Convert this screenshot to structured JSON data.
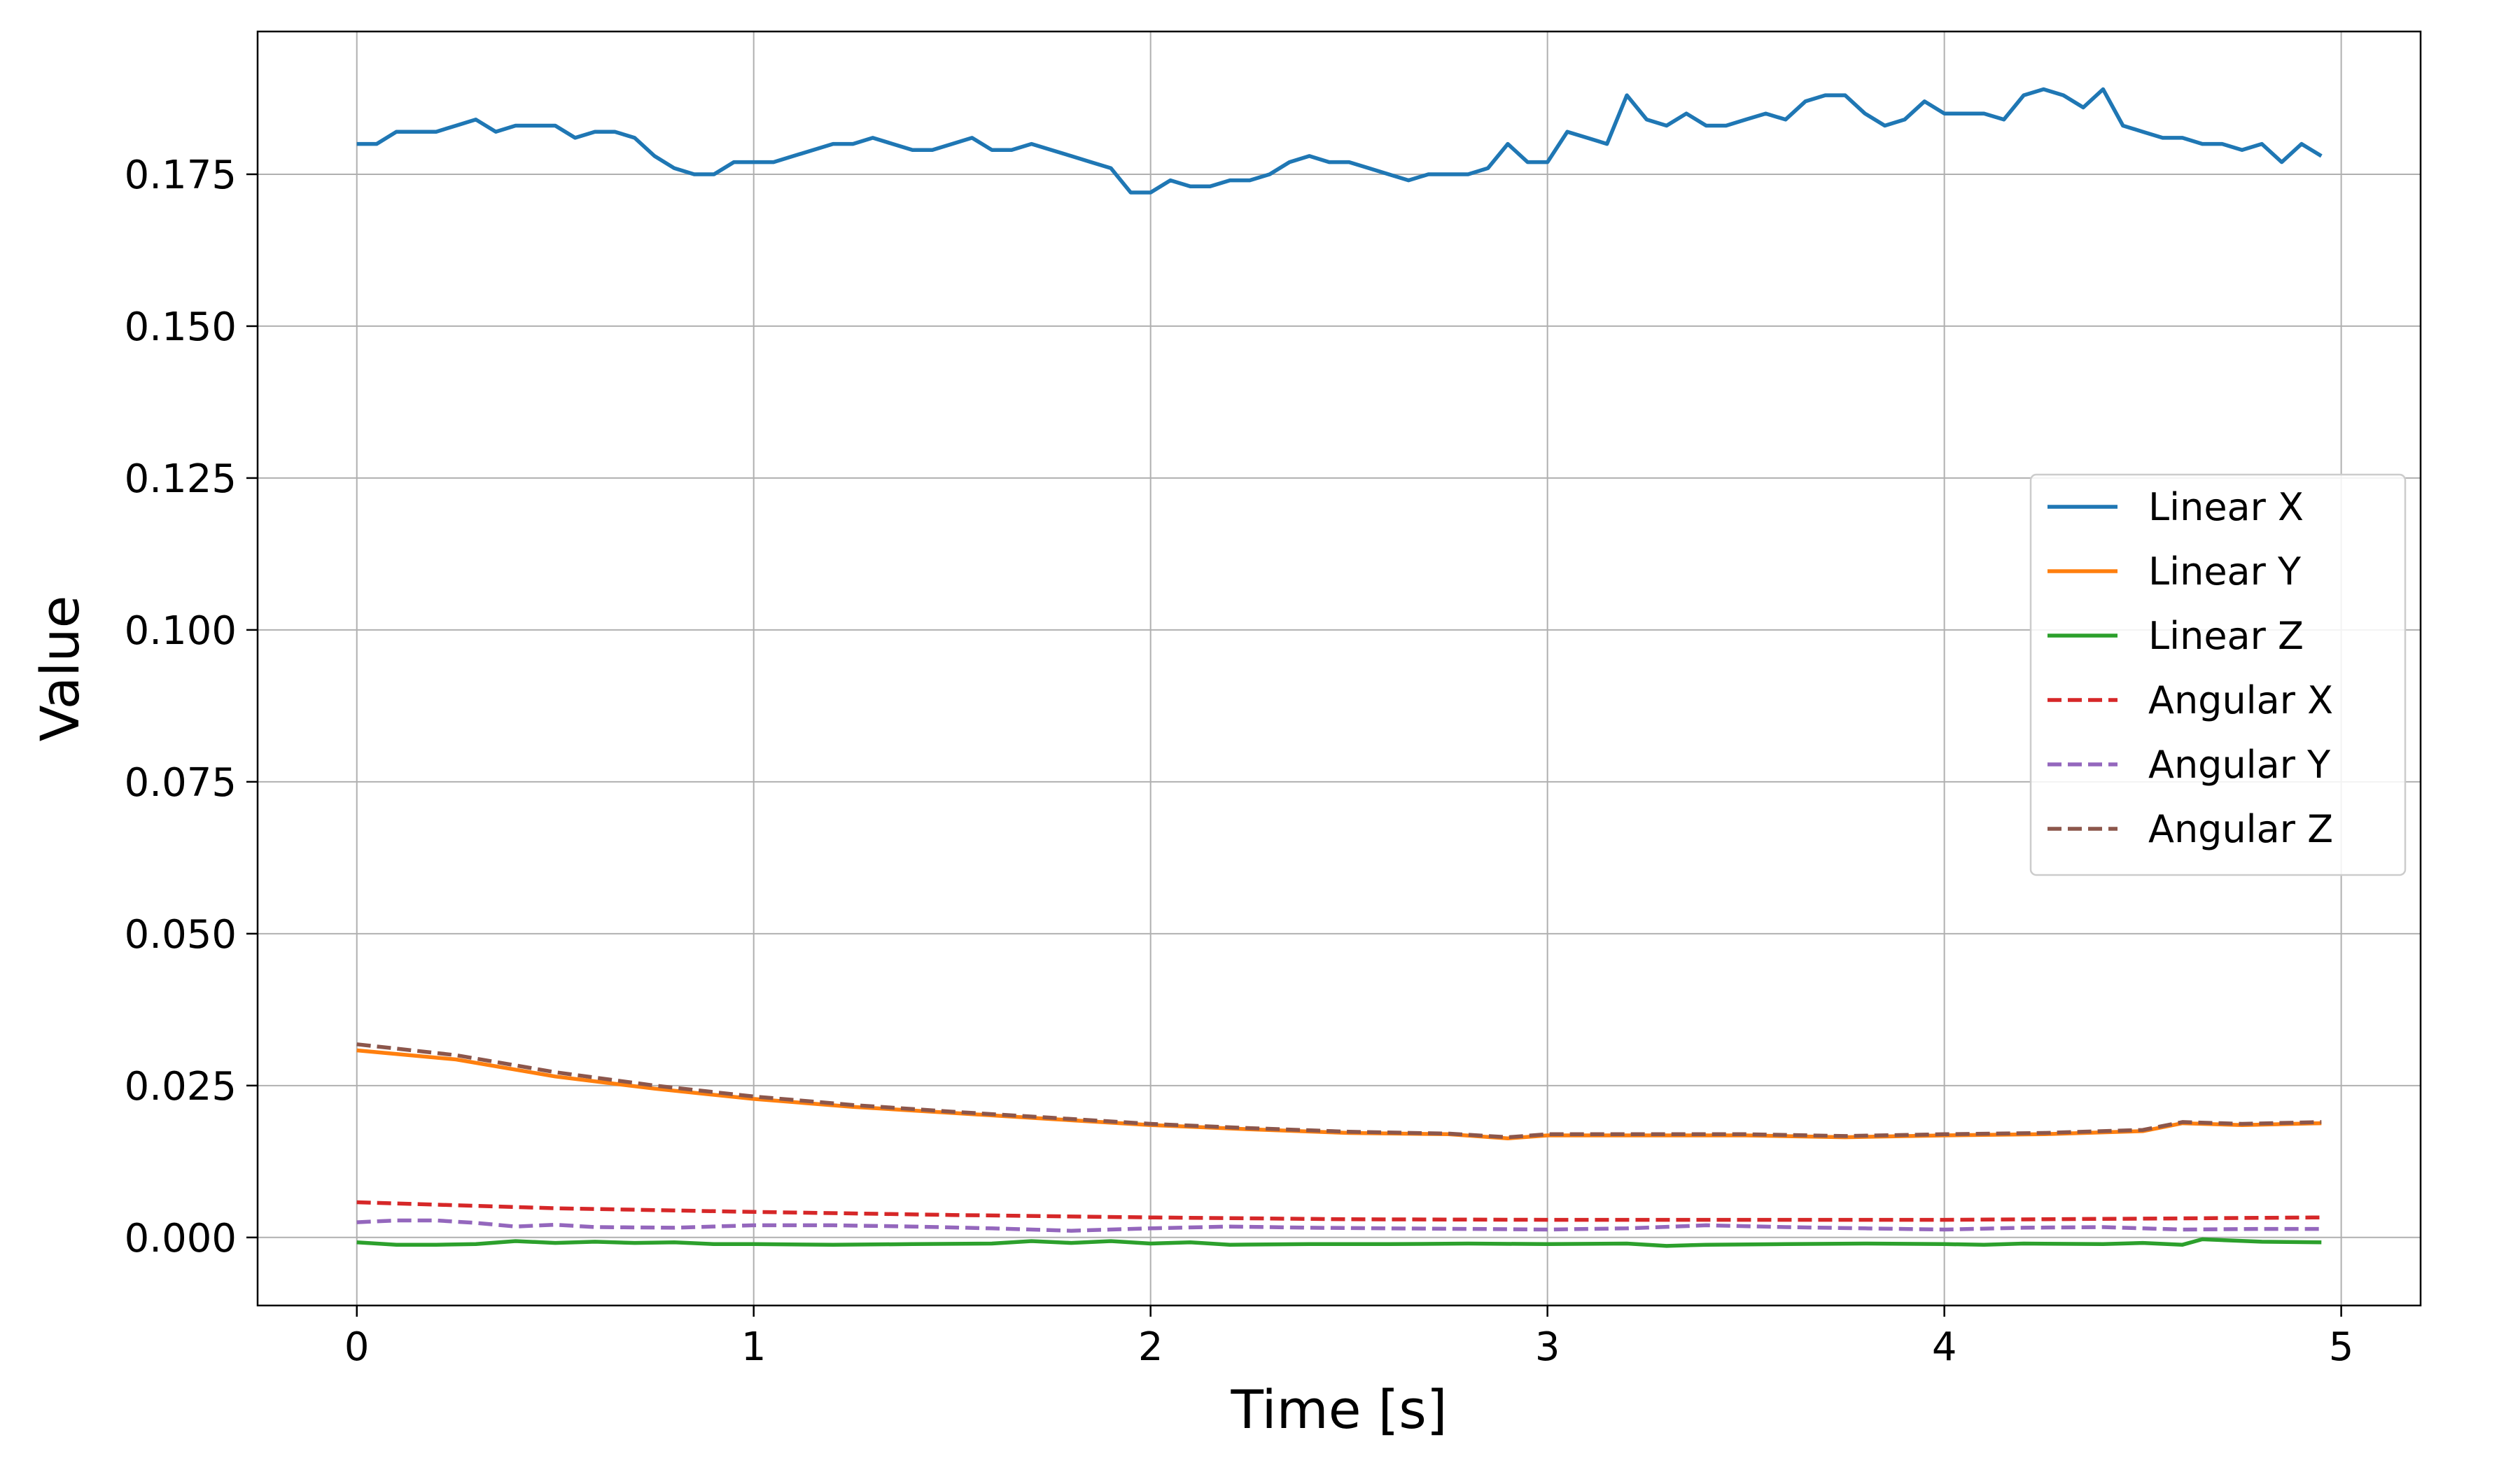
{
  "chart_data": {
    "type": "line",
    "title": "",
    "xlabel": "Time [s]",
    "ylabel": "Value",
    "xlim": [
      -0.25,
      5.2
    ],
    "ylim": [
      -0.0112,
      0.1985
    ],
    "xticks": [
      0,
      1,
      2,
      3,
      4,
      5
    ],
    "xtick_labels": [
      "0",
      "1",
      "2",
      "3",
      "4",
      "5"
    ],
    "yticks": [
      0.0,
      0.025,
      0.05,
      0.075,
      0.1,
      0.125,
      0.15,
      0.175
    ],
    "ytick_labels": [
      "0.000",
      "0.025",
      "0.050",
      "0.075",
      "0.100",
      "0.125",
      "0.150",
      "0.175"
    ],
    "grid": true,
    "legend_position": "center-right",
    "series": [
      {
        "name": "Linear X",
        "color": "#1f77b4",
        "dash": "solid",
        "x": [
          0,
          0.05,
          0.1,
          0.15,
          0.2,
          0.25,
          0.3,
          0.35,
          0.4,
          0.45,
          0.5,
          0.55,
          0.6,
          0.65,
          0.7,
          0.75,
          0.8,
          0.85,
          0.9,
          0.95,
          1.0,
          1.05,
          1.1,
          1.15,
          1.2,
          1.25,
          1.3,
          1.35,
          1.4,
          1.45,
          1.5,
          1.55,
          1.6,
          1.65,
          1.7,
          1.75,
          1.8,
          1.85,
          1.9,
          1.95,
          2.0,
          2.05,
          2.1,
          2.15,
          2.2,
          2.25,
          2.3,
          2.35,
          2.4,
          2.45,
          2.5,
          2.55,
          2.6,
          2.65,
          2.7,
          2.75,
          2.8,
          2.85,
          2.9,
          2.95,
          3.0,
          3.05,
          3.1,
          3.15,
          3.2,
          3.25,
          3.3,
          3.35,
          3.4,
          3.45,
          3.5,
          3.55,
          3.6,
          3.65,
          3.7,
          3.75,
          3.8,
          3.85,
          3.9,
          3.95,
          4.0,
          4.05,
          4.1,
          4.15,
          4.2,
          4.25,
          4.3,
          4.35,
          4.4,
          4.45,
          4.5,
          4.55,
          4.6,
          4.65,
          4.7,
          4.75,
          4.8,
          4.85,
          4.9,
          4.95
        ],
        "y": [
          0.18,
          0.18,
          0.182,
          0.182,
          0.182,
          0.183,
          0.184,
          0.182,
          0.183,
          0.183,
          0.183,
          0.181,
          0.182,
          0.182,
          0.181,
          0.178,
          0.176,
          0.175,
          0.175,
          0.177,
          0.177,
          0.177,
          0.178,
          0.179,
          0.18,
          0.18,
          0.181,
          0.18,
          0.179,
          0.179,
          0.18,
          0.181,
          0.179,
          0.179,
          0.18,
          0.179,
          0.178,
          0.177,
          0.176,
          0.172,
          0.172,
          0.174,
          0.173,
          0.173,
          0.174,
          0.174,
          0.175,
          0.177,
          0.178,
          0.177,
          0.177,
          0.176,
          0.175,
          0.174,
          0.175,
          0.175,
          0.175,
          0.176,
          0.18,
          0.177,
          0.177,
          0.182,
          0.181,
          0.18,
          0.188,
          0.184,
          0.183,
          0.185,
          0.183,
          0.183,
          0.184,
          0.185,
          0.184,
          0.187,
          0.188,
          0.188,
          0.185,
          0.183,
          0.184,
          0.187,
          0.185,
          0.185,
          0.185,
          0.184,
          0.188,
          0.189,
          0.188,
          0.186,
          0.189,
          0.183,
          0.182,
          0.181,
          0.181,
          0.18,
          0.18,
          0.179,
          0.18,
          0.177,
          0.18,
          0.178
        ]
      },
      {
        "name": "Linear Y",
        "color": "#ff7f0e",
        "dash": "solid",
        "x": [
          0,
          0.25,
          0.5,
          0.75,
          1.0,
          1.25,
          1.5,
          1.75,
          2.0,
          2.25,
          2.5,
          2.75,
          2.9,
          3.0,
          3.25,
          3.5,
          3.75,
          4.0,
          4.25,
          4.5,
          4.6,
          4.75,
          4.95
        ],
        "y": [
          0.0308,
          0.0293,
          0.0265,
          0.0245,
          0.0228,
          0.0215,
          0.0205,
          0.0195,
          0.0185,
          0.0178,
          0.0172,
          0.017,
          0.0163,
          0.0168,
          0.0168,
          0.0168,
          0.0165,
          0.0168,
          0.017,
          0.0175,
          0.0188,
          0.0185,
          0.0188
        ]
      },
      {
        "name": "Linear Z",
        "color": "#2ca02c",
        "dash": "solid",
        "x": [
          0,
          0.1,
          0.2,
          0.3,
          0.4,
          0.5,
          0.6,
          0.7,
          0.8,
          0.9,
          1.0,
          1.2,
          1.4,
          1.6,
          1.7,
          1.8,
          1.9,
          2.0,
          2.1,
          2.2,
          2.4,
          2.6,
          2.8,
          3.0,
          3.2,
          3.3,
          3.4,
          3.6,
          3.8,
          4.0,
          4.1,
          4.2,
          4.4,
          4.5,
          4.6,
          4.65,
          4.8,
          4.95
        ],
        "y": [
          -0.0008,
          -0.0012,
          -0.0012,
          -0.0011,
          -0.0006,
          -0.0009,
          -0.0007,
          -0.0009,
          -0.0008,
          -0.0011,
          -0.0011,
          -0.0012,
          -0.0011,
          -0.001,
          -0.0006,
          -0.0009,
          -0.0006,
          -0.001,
          -0.0008,
          -0.0012,
          -0.0011,
          -0.0011,
          -0.001,
          -0.0011,
          -0.001,
          -0.0014,
          -0.0012,
          -0.0011,
          -0.001,
          -0.0011,
          -0.0012,
          -0.001,
          -0.0011,
          -0.0009,
          -0.0012,
          -0.0003,
          -0.0007,
          -0.0008
        ]
      },
      {
        "name": "Angular X",
        "color": "#d62728",
        "dash": "dashed",
        "x": [
          0,
          0.5,
          1.0,
          1.5,
          2.0,
          2.5,
          3.0,
          3.5,
          4.0,
          4.5,
          4.95
        ],
        "y": [
          0.0058,
          0.0048,
          0.0042,
          0.0037,
          0.0033,
          0.003,
          0.0029,
          0.0029,
          0.0029,
          0.0031,
          0.0033
        ]
      },
      {
        "name": "Angular Y",
        "color": "#9467bd",
        "dash": "dashed",
        "x": [
          0,
          0.1,
          0.2,
          0.3,
          0.4,
          0.5,
          0.6,
          0.8,
          1.0,
          1.2,
          1.4,
          1.6,
          1.8,
          2.0,
          2.2,
          2.4,
          2.6,
          2.8,
          3.0,
          3.2,
          3.4,
          3.6,
          3.8,
          4.0,
          4.2,
          4.4,
          4.6,
          4.8,
          4.95
        ],
        "y": [
          0.0025,
          0.0028,
          0.0028,
          0.0024,
          0.0018,
          0.0021,
          0.0017,
          0.0016,
          0.002,
          0.002,
          0.0018,
          0.0015,
          0.0011,
          0.0015,
          0.0018,
          0.0016,
          0.0015,
          0.0014,
          0.0013,
          0.0015,
          0.002,
          0.0017,
          0.0015,
          0.0013,
          0.0016,
          0.0017,
          0.0013,
          0.0014,
          0.0014
        ]
      },
      {
        "name": "Angular Z",
        "color": "#8c564b",
        "dash": "dashed",
        "x": [
          0,
          0.25,
          0.5,
          0.75,
          1.0,
          1.25,
          1.5,
          1.75,
          2.0,
          2.25,
          2.5,
          2.75,
          2.9,
          3.0,
          3.25,
          3.5,
          3.75,
          4.0,
          4.25,
          4.5,
          4.6,
          4.75,
          4.95
        ],
        "y": [
          0.0318,
          0.03,
          0.0272,
          0.025,
          0.0232,
          0.0218,
          0.0207,
          0.0197,
          0.0187,
          0.018,
          0.0174,
          0.0171,
          0.0165,
          0.017,
          0.017,
          0.017,
          0.0167,
          0.017,
          0.0172,
          0.0177,
          0.019,
          0.0187,
          0.019
        ]
      }
    ]
  }
}
